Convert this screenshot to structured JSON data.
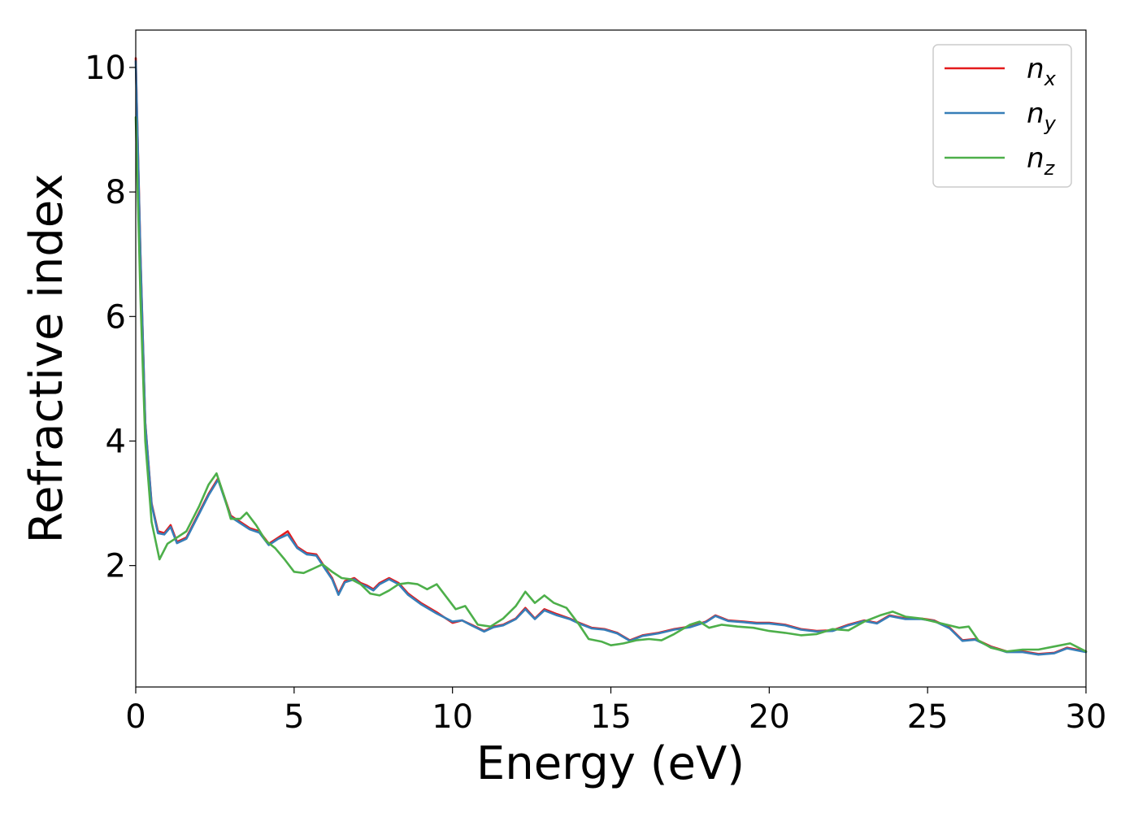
{
  "chart_data": {
    "type": "line",
    "title": "",
    "xlabel": "Energy (eV)",
    "ylabel": "Refractive index",
    "xlim": [
      0,
      30
    ],
    "ylim": [
      0.05,
      10.6
    ],
    "xticks": [
      0,
      5,
      10,
      15,
      20,
      25,
      30
    ],
    "yticks": [
      2,
      4,
      6,
      8,
      10
    ],
    "grid": false,
    "legend_position": "top-right",
    "series": [
      {
        "name": "n",
        "subscript": "x",
        "color": "#e41a1c",
        "points": [
          [
            0,
            10.15
          ],
          [
            0.15,
            7.0
          ],
          [
            0.3,
            4.3
          ],
          [
            0.5,
            3.0
          ],
          [
            0.7,
            2.55
          ],
          [
            0.9,
            2.52
          ],
          [
            1.1,
            2.65
          ],
          [
            1.3,
            2.38
          ],
          [
            1.6,
            2.45
          ],
          [
            2.0,
            2.85
          ],
          [
            2.3,
            3.15
          ],
          [
            2.6,
            3.4
          ],
          [
            2.8,
            3.1
          ],
          [
            3.0,
            2.8
          ],
          [
            3.3,
            2.7
          ],
          [
            3.6,
            2.6
          ],
          [
            3.9,
            2.55
          ],
          [
            4.2,
            2.35
          ],
          [
            4.5,
            2.45
          ],
          [
            4.8,
            2.55
          ],
          [
            5.1,
            2.3
          ],
          [
            5.4,
            2.2
          ],
          [
            5.7,
            2.18
          ],
          [
            6.0,
            1.95
          ],
          [
            6.2,
            1.8
          ],
          [
            6.4,
            1.55
          ],
          [
            6.6,
            1.75
          ],
          [
            6.9,
            1.8
          ],
          [
            7.1,
            1.72
          ],
          [
            7.3,
            1.68
          ],
          [
            7.5,
            1.62
          ],
          [
            7.7,
            1.72
          ],
          [
            8.0,
            1.8
          ],
          [
            8.3,
            1.72
          ],
          [
            8.6,
            1.55
          ],
          [
            9.0,
            1.4
          ],
          [
            9.5,
            1.25
          ],
          [
            10.0,
            1.08
          ],
          [
            10.3,
            1.12
          ],
          [
            10.6,
            1.05
          ],
          [
            11.0,
            0.95
          ],
          [
            11.3,
            1.02
          ],
          [
            11.6,
            1.05
          ],
          [
            12.0,
            1.15
          ],
          [
            12.3,
            1.32
          ],
          [
            12.6,
            1.15
          ],
          [
            12.9,
            1.3
          ],
          [
            13.3,
            1.22
          ],
          [
            13.7,
            1.15
          ],
          [
            14.0,
            1.08
          ],
          [
            14.4,
            1.0
          ],
          [
            14.8,
            0.98
          ],
          [
            15.2,
            0.92
          ],
          [
            15.6,
            0.8
          ],
          [
            16.0,
            0.88
          ],
          [
            16.5,
            0.92
          ],
          [
            17.0,
            0.98
          ],
          [
            17.5,
            1.02
          ],
          [
            18.0,
            1.1
          ],
          [
            18.3,
            1.2
          ],
          [
            18.7,
            1.12
          ],
          [
            19.2,
            1.1
          ],
          [
            19.6,
            1.08
          ],
          [
            20.0,
            1.08
          ],
          [
            20.5,
            1.05
          ],
          [
            21.0,
            0.98
          ],
          [
            21.5,
            0.95
          ],
          [
            22.0,
            0.96
          ],
          [
            22.5,
            1.05
          ],
          [
            23.0,
            1.12
          ],
          [
            23.4,
            1.08
          ],
          [
            23.8,
            1.2
          ],
          [
            24.3,
            1.15
          ],
          [
            24.8,
            1.15
          ],
          [
            25.2,
            1.12
          ],
          [
            25.7,
            1.0
          ],
          [
            26.1,
            0.8
          ],
          [
            26.5,
            0.82
          ],
          [
            27.0,
            0.7
          ],
          [
            27.5,
            0.62
          ],
          [
            28.0,
            0.62
          ],
          [
            28.5,
            0.58
          ],
          [
            29.0,
            0.6
          ],
          [
            29.4,
            0.68
          ],
          [
            30.0,
            0.62
          ]
        ]
      },
      {
        "name": "n",
        "subscript": "y",
        "color": "#377eb8",
        "points": [
          [
            0,
            10.1
          ],
          [
            0.15,
            6.95
          ],
          [
            0.3,
            4.28
          ],
          [
            0.5,
            2.98
          ],
          [
            0.7,
            2.52
          ],
          [
            0.9,
            2.5
          ],
          [
            1.1,
            2.62
          ],
          [
            1.3,
            2.36
          ],
          [
            1.6,
            2.43
          ],
          [
            2.0,
            2.83
          ],
          [
            2.3,
            3.13
          ],
          [
            2.6,
            3.38
          ],
          [
            2.8,
            3.08
          ],
          [
            3.0,
            2.78
          ],
          [
            3.3,
            2.68
          ],
          [
            3.6,
            2.58
          ],
          [
            3.9,
            2.53
          ],
          [
            4.2,
            2.33
          ],
          [
            4.5,
            2.43
          ],
          [
            4.8,
            2.5
          ],
          [
            5.1,
            2.28
          ],
          [
            5.4,
            2.18
          ],
          [
            5.7,
            2.16
          ],
          [
            6.0,
            1.93
          ],
          [
            6.2,
            1.78
          ],
          [
            6.4,
            1.53
          ],
          [
            6.6,
            1.73
          ],
          [
            6.9,
            1.78
          ],
          [
            7.1,
            1.7
          ],
          [
            7.3,
            1.66
          ],
          [
            7.5,
            1.6
          ],
          [
            7.7,
            1.7
          ],
          [
            8.0,
            1.78
          ],
          [
            8.3,
            1.7
          ],
          [
            8.6,
            1.53
          ],
          [
            9.0,
            1.38
          ],
          [
            9.5,
            1.23
          ],
          [
            10.0,
            1.1
          ],
          [
            10.3,
            1.12
          ],
          [
            10.6,
            1.04
          ],
          [
            11.0,
            0.94
          ],
          [
            11.3,
            1.01
          ],
          [
            11.6,
            1.04
          ],
          [
            12.0,
            1.14
          ],
          [
            12.3,
            1.3
          ],
          [
            12.6,
            1.14
          ],
          [
            12.9,
            1.28
          ],
          [
            13.3,
            1.2
          ],
          [
            13.7,
            1.14
          ],
          [
            14.0,
            1.07
          ],
          [
            14.4,
            0.99
          ],
          [
            14.8,
            0.97
          ],
          [
            15.2,
            0.91
          ],
          [
            15.6,
            0.79
          ],
          [
            16.0,
            0.87
          ],
          [
            16.5,
            0.91
          ],
          [
            17.0,
            0.97
          ],
          [
            17.5,
            1.01
          ],
          [
            18.0,
            1.09
          ],
          [
            18.3,
            1.19
          ],
          [
            18.7,
            1.11
          ],
          [
            19.2,
            1.09
          ],
          [
            19.6,
            1.07
          ],
          [
            20.0,
            1.07
          ],
          [
            20.5,
            1.04
          ],
          [
            21.0,
            0.97
          ],
          [
            21.5,
            0.94
          ],
          [
            22.0,
            0.95
          ],
          [
            22.5,
            1.04
          ],
          [
            23.0,
            1.11
          ],
          [
            23.4,
            1.07
          ],
          [
            23.8,
            1.19
          ],
          [
            24.3,
            1.14
          ],
          [
            24.8,
            1.14
          ],
          [
            25.2,
            1.11
          ],
          [
            25.7,
            0.99
          ],
          [
            26.1,
            0.79
          ],
          [
            26.5,
            0.81
          ],
          [
            27.0,
            0.69
          ],
          [
            27.5,
            0.61
          ],
          [
            28.0,
            0.61
          ],
          [
            28.5,
            0.57
          ],
          [
            29.0,
            0.59
          ],
          [
            29.4,
            0.67
          ],
          [
            30.0,
            0.61
          ]
        ]
      },
      {
        "name": "n",
        "subscript": "z",
        "color": "#4daf4a",
        "points": [
          [
            0,
            9.2
          ],
          [
            0.15,
            6.3
          ],
          [
            0.3,
            4.0
          ],
          [
            0.5,
            2.7
          ],
          [
            0.75,
            2.1
          ],
          [
            1.0,
            2.35
          ],
          [
            1.3,
            2.45
          ],
          [
            1.6,
            2.55
          ],
          [
            2.0,
            2.95
          ],
          [
            2.3,
            3.3
          ],
          [
            2.55,
            3.48
          ],
          [
            2.8,
            3.1
          ],
          [
            3.0,
            2.75
          ],
          [
            3.3,
            2.75
          ],
          [
            3.5,
            2.85
          ],
          [
            3.8,
            2.65
          ],
          [
            4.1,
            2.4
          ],
          [
            4.4,
            2.28
          ],
          [
            4.7,
            2.1
          ],
          [
            5.0,
            1.9
          ],
          [
            5.3,
            1.88
          ],
          [
            5.6,
            1.95
          ],
          [
            5.9,
            2.02
          ],
          [
            6.2,
            1.9
          ],
          [
            6.5,
            1.8
          ],
          [
            6.8,
            1.78
          ],
          [
            7.1,
            1.7
          ],
          [
            7.4,
            1.55
          ],
          [
            7.7,
            1.52
          ],
          [
            8.0,
            1.6
          ],
          [
            8.3,
            1.7
          ],
          [
            8.6,
            1.72
          ],
          [
            8.9,
            1.7
          ],
          [
            9.2,
            1.62
          ],
          [
            9.5,
            1.7
          ],
          [
            9.8,
            1.5
          ],
          [
            10.1,
            1.3
          ],
          [
            10.4,
            1.35
          ],
          [
            10.8,
            1.05
          ],
          [
            11.2,
            1.02
          ],
          [
            11.6,
            1.15
          ],
          [
            12.0,
            1.35
          ],
          [
            12.3,
            1.58
          ],
          [
            12.6,
            1.4
          ],
          [
            12.9,
            1.52
          ],
          [
            13.2,
            1.4
          ],
          [
            13.6,
            1.32
          ],
          [
            14.0,
            1.05
          ],
          [
            14.3,
            0.82
          ],
          [
            14.7,
            0.78
          ],
          [
            15.0,
            0.72
          ],
          [
            15.4,
            0.75
          ],
          [
            15.8,
            0.8
          ],
          [
            16.2,
            0.82
          ],
          [
            16.6,
            0.8
          ],
          [
            17.0,
            0.9
          ],
          [
            17.5,
            1.05
          ],
          [
            17.8,
            1.1
          ],
          [
            18.1,
            1.0
          ],
          [
            18.5,
            1.05
          ],
          [
            19.0,
            1.02
          ],
          [
            19.5,
            1.0
          ],
          [
            20.0,
            0.95
          ],
          [
            20.5,
            0.92
          ],
          [
            21.0,
            0.88
          ],
          [
            21.5,
            0.9
          ],
          [
            22.0,
            0.98
          ],
          [
            22.5,
            0.96
          ],
          [
            23.0,
            1.1
          ],
          [
            23.5,
            1.2
          ],
          [
            23.9,
            1.26
          ],
          [
            24.3,
            1.18
          ],
          [
            24.8,
            1.15
          ],
          [
            25.2,
            1.1
          ],
          [
            25.6,
            1.05
          ],
          [
            26.0,
            1.0
          ],
          [
            26.3,
            1.02
          ],
          [
            26.6,
            0.8
          ],
          [
            27.0,
            0.68
          ],
          [
            27.5,
            0.62
          ],
          [
            28.0,
            0.65
          ],
          [
            28.5,
            0.65
          ],
          [
            29.0,
            0.7
          ],
          [
            29.5,
            0.75
          ],
          [
            30.0,
            0.62
          ]
        ]
      }
    ]
  }
}
